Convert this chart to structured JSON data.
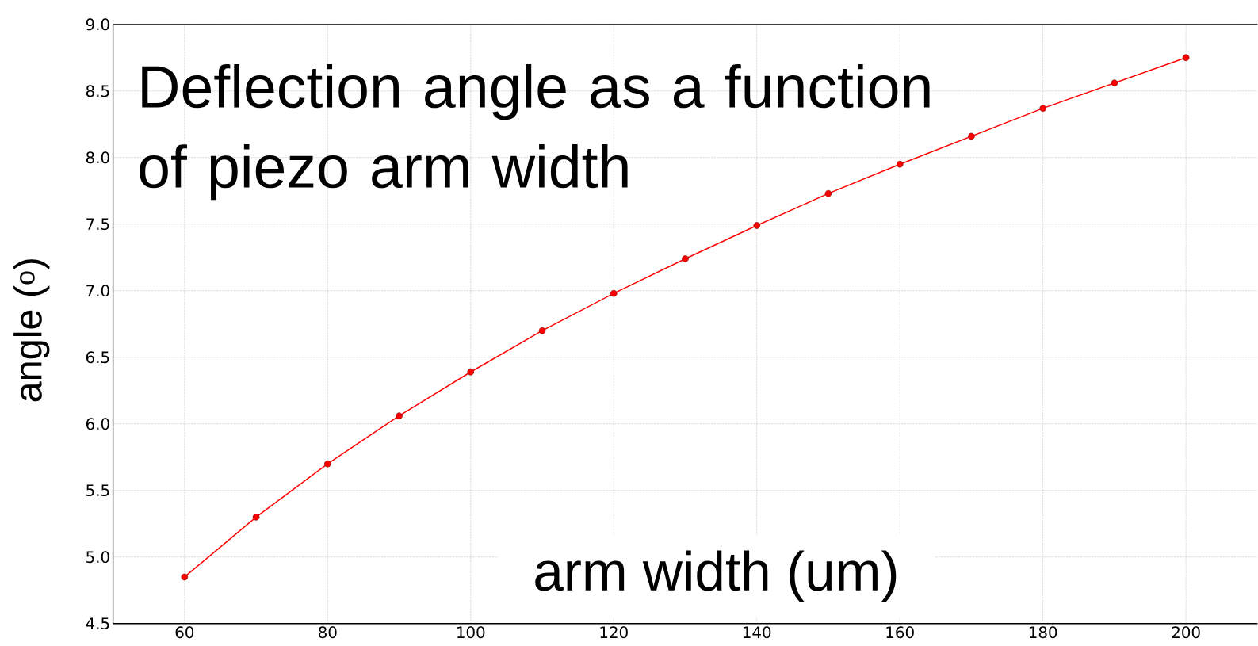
{
  "chart_data": {
    "type": "line",
    "title": "Deflection angle as a function of piezo arm width",
    "xlabel": "arm width (um)",
    "ylabel": "angle ($^{o}$)",
    "x": [
      60,
      70,
      80,
      90,
      100,
      110,
      120,
      130,
      140,
      150,
      160,
      170,
      180,
      190,
      200
    ],
    "series": [
      {
        "color": "#ff0000",
        "values": [
          4.85,
          5.3,
          5.7,
          6.06,
          6.39,
          6.7,
          6.98,
          7.24,
          7.49,
          7.73,
          7.95,
          8.16,
          8.37,
          8.56,
          8.75
        ]
      }
    ],
    "xlim": [
      50,
      210
    ],
    "ylim": [
      4.5,
      9.0
    ],
    "xticks": [
      60,
      80,
      100,
      120,
      140,
      160,
      180,
      200
    ],
    "yticks": [
      4.5,
      {
        "value": 5,
        "label": "5.0"
      },
      5.5,
      {
        "value": 6,
        "label": "6.0"
      },
      6.5,
      {
        "value": 7,
        "label": "7.0"
      },
      7.5,
      {
        "value": 8,
        "label": "8.0"
      },
      8.5,
      {
        "value": 9,
        "label": "9.0"
      }
    ],
    "grid": true,
    "marker": "circle",
    "line_style": "solid"
  }
}
